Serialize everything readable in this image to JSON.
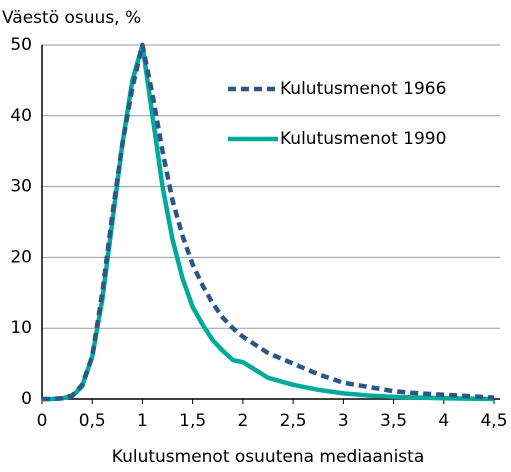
{
  "chart_data": {
    "type": "line",
    "title": "Väestö osuus, %",
    "x_label": "Kulutusmenot osuutena mediaanista",
    "x": [
      0,
      0.1,
      0.2,
      0.3,
      0.4,
      0.5,
      0.6,
      0.7,
      0.8,
      0.9,
      1.0,
      1.1,
      1.2,
      1.3,
      1.4,
      1.5,
      1.6,
      1.7,
      1.8,
      1.9,
      2.0,
      2.25,
      2.5,
      2.75,
      3.0,
      3.25,
      3.5,
      3.75,
      4.0,
      4.25,
      4.5
    ],
    "series": [
      {
        "name": "Kulutusmenot 1966",
        "color": "#2b5788",
        "line_style": "dashed",
        "values": [
          0,
          0,
          0.1,
          0.5,
          2,
          6,
          15,
          26,
          36,
          44,
          50,
          43,
          35,
          28,
          23,
          19,
          16,
          13.5,
          11.5,
          10,
          8.8,
          6.5,
          5,
          3.5,
          2.3,
          1.7,
          1.1,
          0.8,
          0.6,
          0.4,
          0.2
        ]
      },
      {
        "name": "Kulutusmenot 1990",
        "color": "#00aa9a",
        "line_style": "solid",
        "values": [
          0,
          0,
          0.1,
          0.4,
          1.8,
          6,
          14,
          25,
          36,
          45,
          50,
          40,
          30,
          22.5,
          17,
          13,
          10.5,
          8.3,
          6.8,
          5.5,
          5.2,
          3,
          2,
          1.3,
          0.8,
          0.5,
          0.3,
          0.2,
          0.1,
          0.05,
          0
        ]
      }
    ],
    "xlim": [
      0,
      4.5
    ],
    "xticks": [
      0,
      {
        "value": 0.5,
        "label": "0,5"
      },
      1,
      {
        "value": 1.5,
        "label": "1,5"
      },
      2,
      {
        "value": 2.5,
        "label": "2,5"
      },
      3,
      {
        "value": 3.5,
        "label": "3,5"
      },
      4,
      {
        "value": 4.5,
        "label": "4,5"
      }
    ],
    "ylim": [
      0,
      50
    ],
    "yticks": [
      0,
      10,
      20,
      30,
      40,
      50
    ],
    "grid": true,
    "legend_position": "upper right"
  }
}
